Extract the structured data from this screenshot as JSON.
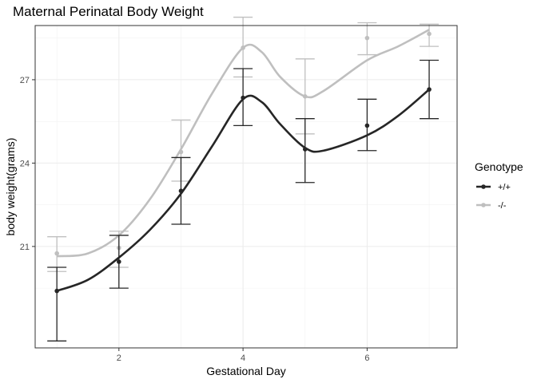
{
  "chart_data": {
    "type": "line",
    "title": "Maternal Perinatal Body Weight",
    "xlabel": "Gestational Day",
    "ylabel": "body weight(grams)",
    "xlim": [
      0.65,
      7.45
    ],
    "ylim": [
      17.35,
      28.95
    ],
    "x_ticks": [
      2,
      4,
      6
    ],
    "x_tick_labels": [
      "2",
      "4",
      "6"
    ],
    "y_ticks": [
      21,
      24,
      27
    ],
    "y_tick_labels": [
      "21",
      "24",
      "27"
    ],
    "grid": true,
    "legend": {
      "title": "Genotype",
      "position": "right"
    },
    "series": [
      {
        "name": "+/+",
        "color": "#262626",
        "x": [
          1,
          2,
          3,
          4,
          5,
          6,
          7
        ],
        "y": [
          19.4,
          20.45,
          23.0,
          26.35,
          24.5,
          25.35,
          26.65
        ],
        "err_low": [
          17.6,
          19.5,
          21.8,
          25.35,
          23.3,
          24.45,
          25.6
        ],
        "err_high": [
          20.25,
          21.4,
          24.2,
          27.4,
          25.6,
          26.3,
          27.7
        ],
        "smooth": [
          [
            1,
            19.4
          ],
          [
            1.5,
            19.8
          ],
          [
            2,
            20.6
          ],
          [
            2.5,
            21.6
          ],
          [
            3,
            22.9
          ],
          [
            3.5,
            24.6
          ],
          [
            4,
            26.3
          ],
          [
            4.3,
            26.2
          ],
          [
            4.6,
            25.4
          ],
          [
            5,
            24.55
          ],
          [
            5.3,
            24.45
          ],
          [
            6,
            25.0
          ],
          [
            6.5,
            25.7
          ],
          [
            7,
            26.65
          ]
        ]
      },
      {
        "name": "-/-",
        "color": "#bfbfbf",
        "x": [
          1,
          2,
          3,
          4,
          5,
          6,
          7
        ],
        "y": [
          20.75,
          20.95,
          24.4,
          28.15,
          26.4,
          28.5,
          28.65
        ],
        "err_low": [
          20.1,
          20.25,
          23.35,
          27.1,
          25.05,
          27.9,
          28.2
        ],
        "err_high": [
          21.35,
          21.55,
          25.55,
          29.25,
          27.75,
          29.05,
          29.0
        ],
        "smooth": [
          [
            1,
            20.65
          ],
          [
            1.5,
            20.75
          ],
          [
            2,
            21.4
          ],
          [
            2.5,
            22.7
          ],
          [
            3,
            24.5
          ],
          [
            3.5,
            26.5
          ],
          [
            4,
            28.15
          ],
          [
            4.3,
            28.0
          ],
          [
            4.6,
            27.1
          ],
          [
            5,
            26.4
          ],
          [
            5.3,
            26.6
          ],
          [
            6,
            27.7
          ],
          [
            6.5,
            28.2
          ],
          [
            7,
            28.8
          ]
        ]
      }
    ]
  }
}
